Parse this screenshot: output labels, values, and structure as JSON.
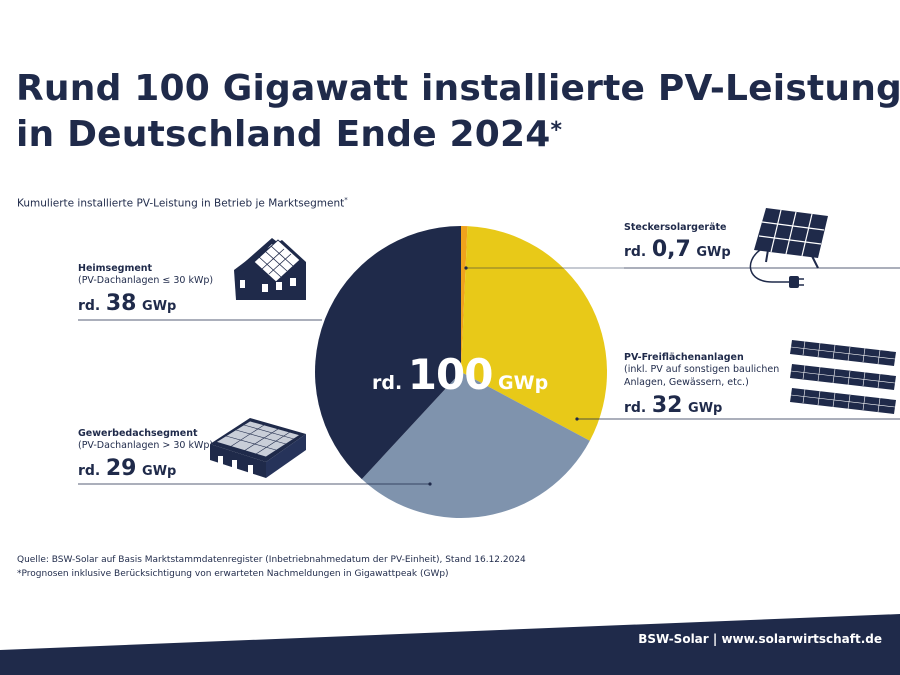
{
  "title_line1": "Rund 100 Gigawatt installierte PV-Leistung",
  "title_line2": "in Deutschland Ende 2024",
  "title_star": "*",
  "subtitle": "Kumulierte installierte PV-Leistung in Betrieb je Marktsegment",
  "subtitle_star": "*",
  "center": {
    "rd": "rd.",
    "num": "100",
    "unit": "GWp"
  },
  "segments": {
    "stecker": {
      "name": "Steckersolargeräte",
      "rd": "rd.",
      "num": "0,7",
      "unit": "GWp"
    },
    "heim": {
      "name": "Heimsegment",
      "sub": "(PV-Dachanlagen ≤ 30 kWp)",
      "rd": "rd.",
      "num": "38",
      "unit": "GWp"
    },
    "frei": {
      "name": "PV-Freiflächenanlagen",
      "sub1": "(inkl. PV auf sonstigen baulichen",
      "sub2": "Anlagen, Gewässern, etc.)",
      "rd": "rd.",
      "num": "32",
      "unit": "GWp"
    },
    "gewerbe": {
      "name": "Gewerbedachsegment",
      "sub": "(PV-Dachanlagen > 30 kWp)",
      "rd": "rd.",
      "num": "29",
      "unit": "GWp"
    }
  },
  "source_line1": "Quelle: BSW-Solar auf Basis Marktstammdatenregister (Inbetriebnahmedatum der PV-Einheit), Stand 16.12.2024",
  "source_line2": "*Prognosen inklusive Berücksichtigung von erwarteten Nachmeldungen in Gigawattpeak (GWp)",
  "footer": "BSW-Solar | www.solarwirtschaft.de",
  "colors": {
    "navy": "#1f2a4a",
    "yellow": "#e8c918",
    "grey": "#7f93ad",
    "orange": "#f0a31c",
    "line": "#1f2a4a"
  },
  "chart_data": {
    "type": "pie",
    "title": "Kumulierte installierte PV-Leistung in Betrieb je Marktsegment",
    "unit": "GWp",
    "total": 100,
    "categories": [
      "Steckersolargeräte",
      "PV-Freiflächenanlagen",
      "Gewerbedachsegment",
      "Heimsegment"
    ],
    "values": [
      0.7,
      32,
      29,
      38
    ],
    "colors": [
      "#f0a31c",
      "#e8c918",
      "#7f93ad",
      "#1f2a4a"
    ],
    "start_angle_deg": 0,
    "direction": "clockwise"
  }
}
